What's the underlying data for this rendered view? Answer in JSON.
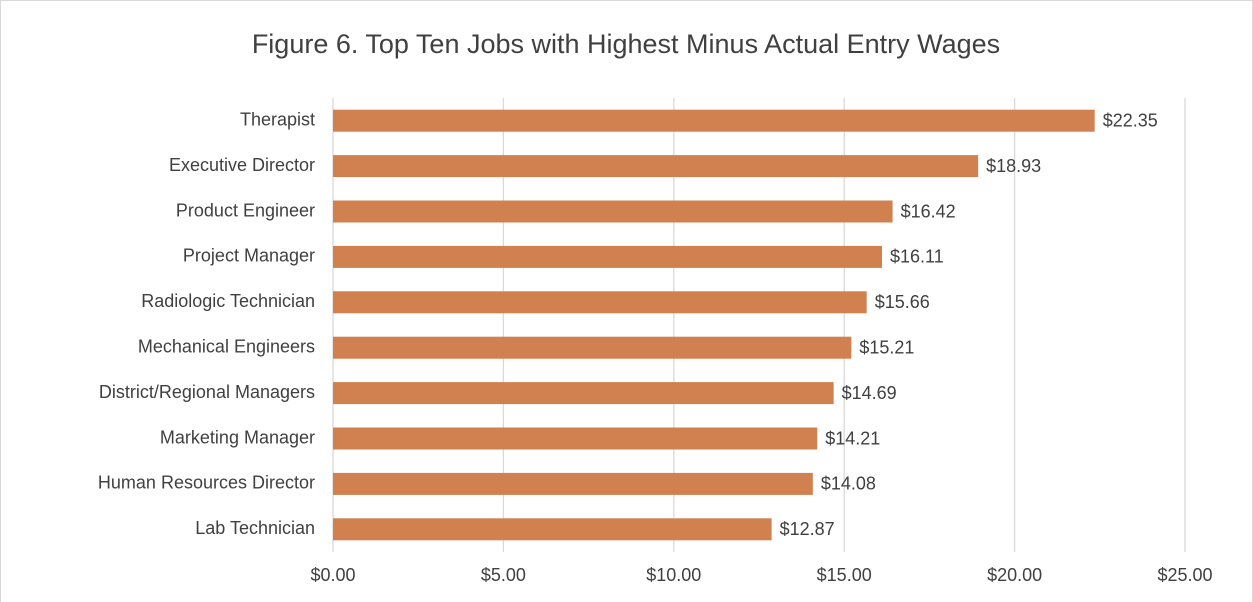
{
  "chart_data": {
    "type": "bar",
    "orientation": "horizontal",
    "title": "Figure 6. Top Ten Jobs with Highest Minus Actual Entry Wages",
    "categories": [
      "Therapist",
      "Executive Director",
      "Product Engineer",
      "Project Manager",
      "Radiologic Technician",
      "Mechanical Engineers",
      "District/Regional Managers",
      "Marketing Manager",
      "Human Resources Director",
      "Lab Technician"
    ],
    "values": [
      22.35,
      18.93,
      16.42,
      16.11,
      15.66,
      15.21,
      14.69,
      14.21,
      14.08,
      12.87
    ],
    "value_labels": [
      "$22.35",
      "$18.93",
      "$16.42",
      "$16.11",
      "$15.66",
      "$15.21",
      "$14.69",
      "$14.21",
      "$14.08",
      "$12.87"
    ],
    "color": "#d18050",
    "xlim": [
      0,
      25
    ],
    "xticks": [
      {
        "value": 0,
        "label": "$0.00"
      },
      {
        "value": 5,
        "label": "$5.00"
      },
      {
        "value": 10,
        "label": "$10.00"
      },
      {
        "value": 15,
        "label": "$15.00"
      },
      {
        "value": 20,
        "label": "$20.00"
      },
      {
        "value": 25,
        "label": "$25.00"
      }
    ],
    "grid": true
  }
}
